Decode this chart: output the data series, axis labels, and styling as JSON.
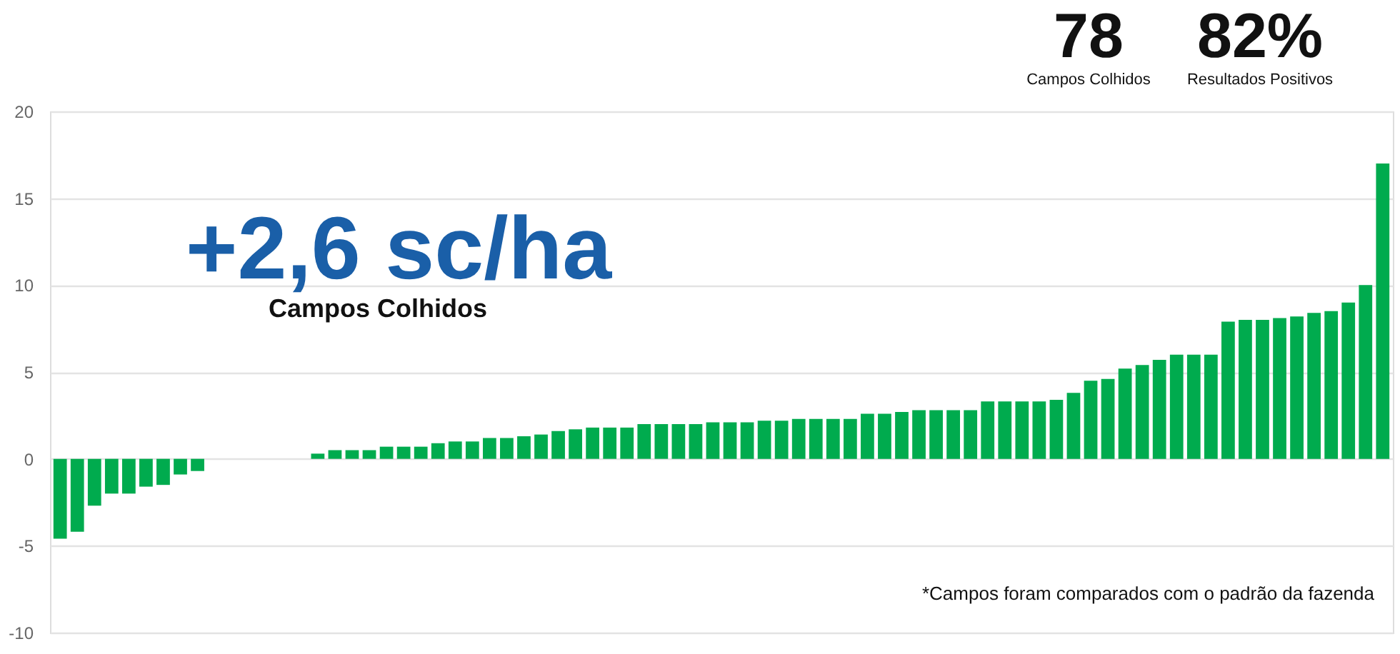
{
  "chart_data": {
    "type": "bar",
    "categories": [
      null,
      null,
      null,
      null,
      null,
      null,
      null,
      null,
      null,
      null,
      null,
      null,
      null,
      null,
      null,
      null,
      null,
      null,
      null,
      null,
      null,
      null,
      null,
      null,
      null,
      null,
      null,
      null,
      null,
      null,
      null,
      null,
      null,
      null,
      null,
      null,
      null,
      null,
      null,
      null,
      null,
      null,
      null,
      null,
      null,
      null,
      null,
      null,
      null,
      null,
      null,
      null,
      null,
      null,
      null,
      null,
      null,
      null,
      null,
      null,
      null,
      null,
      null,
      null,
      null,
      null,
      null,
      null,
      null,
      null,
      null,
      null,
      null,
      null,
      null,
      null,
      null,
      null
    ],
    "values": [
      -4.6,
      -4.2,
      -2.7,
      -2.0,
      -2.0,
      -1.6,
      -1.5,
      -0.9,
      -0.7,
      0,
      0,
      0,
      0,
      0,
      0,
      0.3,
      0.5,
      0.5,
      0.5,
      0.7,
      0.7,
      0.7,
      0.9,
      1.0,
      1.0,
      1.2,
      1.2,
      1.3,
      1.4,
      1.6,
      1.7,
      1.8,
      1.8,
      1.8,
      2.0,
      2.0,
      2.0,
      2.0,
      2.1,
      2.1,
      2.1,
      2.2,
      2.2,
      2.3,
      2.3,
      2.3,
      2.3,
      2.6,
      2.6,
      2.7,
      2.8,
      2.8,
      2.8,
      2.8,
      3.3,
      3.3,
      3.3,
      3.3,
      3.4,
      3.8,
      4.5,
      4.6,
      5.2,
      5.4,
      5.7,
      6.0,
      6.0,
      6.0,
      7.9,
      8.0,
      8.0,
      8.1,
      8.2,
      8.4,
      8.5,
      9.0,
      10.0,
      17.0
    ],
    "color": "#00ab4e",
    "ylim": [
      -10,
      20
    ],
    "yticks": [
      -10,
      -5,
      0,
      5,
      10,
      15,
      20
    ],
    "grid": "y",
    "annotations": [
      "78",
      "Campos Colhidos",
      "82%",
      "Resultados Positivos",
      "+2,6 sc/ha",
      "Campos Colhidos",
      "*Campos foram comparados com o padrão da fazenda"
    ]
  }
}
